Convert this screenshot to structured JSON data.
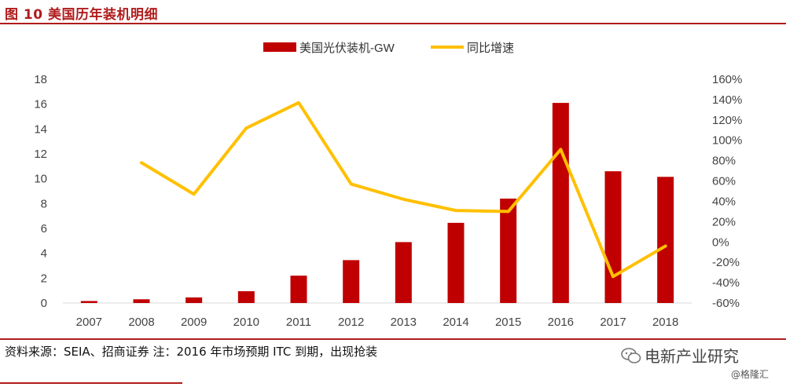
{
  "header": {
    "title": "图 10  美国历年装机明细"
  },
  "footer": {
    "source": "资料来源：SEIA、招商证券   注：2016 年市场预期 ITC 到期，出现抢装",
    "watermark": "电新产业研究",
    "watermark2": "@格隆汇"
  },
  "colors": {
    "bar": "#c00000",
    "line": "#ffc000",
    "accent": "#b01c1c"
  },
  "chart_data": {
    "type": "bar+line",
    "categories": [
      "2007",
      "2008",
      "2009",
      "2010",
      "2011",
      "2012",
      "2013",
      "2014",
      "2015",
      "2016",
      "2017",
      "2018"
    ],
    "series": [
      {
        "name": "美国光伏装机-GW",
        "axis": "left",
        "kind": "bar",
        "values": [
          0.16,
          0.3,
          0.45,
          0.95,
          2.2,
          3.45,
          4.9,
          6.45,
          8.4,
          16.1,
          10.6,
          10.15
        ]
      },
      {
        "name": "同比增速",
        "axis": "right",
        "kind": "line",
        "values": [
          null,
          78,
          47,
          112,
          137,
          57,
          42,
          31,
          30,
          91,
          -34,
          -4
        ]
      }
    ],
    "y_left": {
      "min": 0,
      "max": 18,
      "ticks": [
        "0",
        "2",
        "4",
        "6",
        "8",
        "10",
        "12",
        "14",
        "16",
        "18"
      ]
    },
    "y_right": {
      "min": -60,
      "max": 160,
      "ticks": [
        "-60%",
        "-40%",
        "-20%",
        "0%",
        "20%",
        "40%",
        "60%",
        "80%",
        "100%",
        "120%",
        "140%",
        "160%"
      ]
    },
    "legend": "top-center"
  }
}
